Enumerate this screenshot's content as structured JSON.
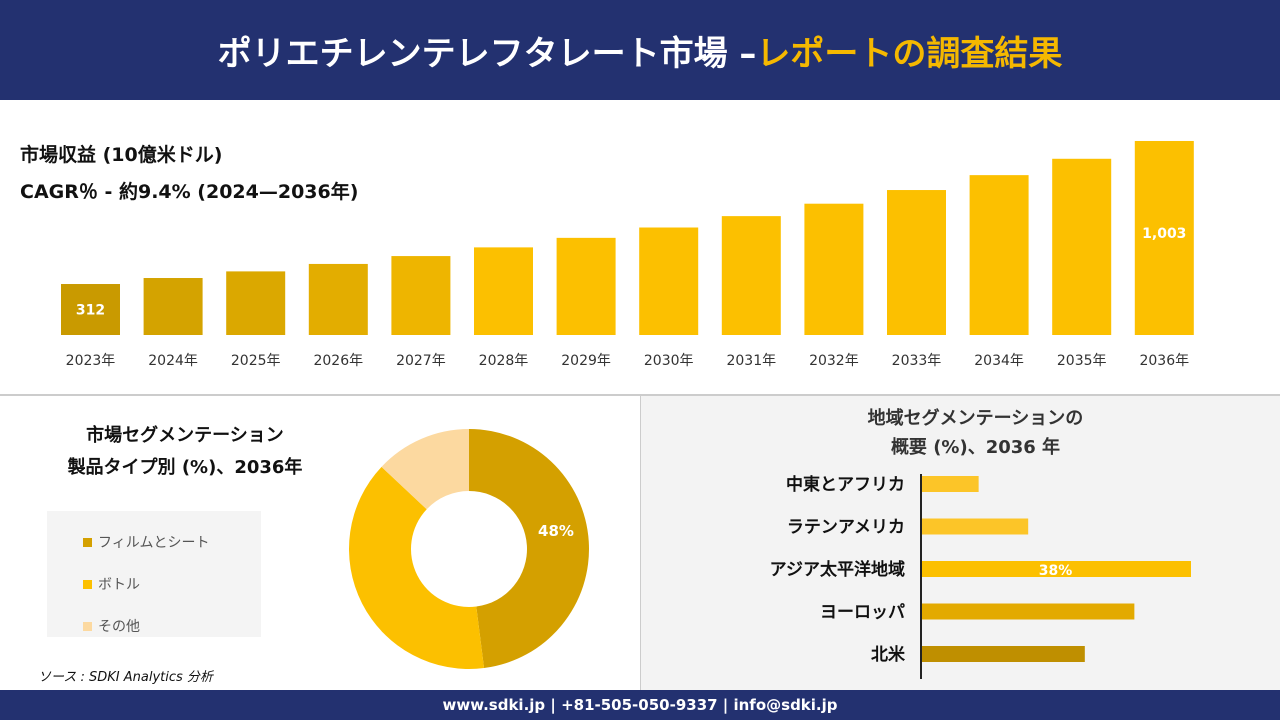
{
  "header": {
    "title_main": "ポリエチレンテレフタレート市場 –",
    "title_accent": "レポートの調査結果"
  },
  "colors": {
    "navy": "#233170",
    "accent": "#f5b800"
  },
  "chart_data": [
    {
      "type": "bar",
      "title": "市場収益 (10億米ドル)",
      "subtitle": "CAGR％ - 約9.4% (2024—2036年)",
      "categories": [
        "2023年",
        "2024年",
        "2025年",
        "2026年",
        "2027年",
        "2028年",
        "2029年",
        "2030年",
        "2031年",
        "2032年",
        "2033年",
        "2034年",
        "2035年",
        "2036年"
      ],
      "values": [
        312,
        341,
        373,
        409,
        447,
        489,
        535,
        585,
        640,
        700,
        766,
        838,
        917,
        1003
      ],
      "data_labels": {
        "0": "312",
        "13": "1,003"
      }
    },
    {
      "type": "pie",
      "title": "市場セグメンテーション",
      "subtitle": "製品タイプ別 (%)、2036年",
      "labels": [
        "フィルムとシート",
        "ボトル",
        "その他"
      ],
      "values": [
        48,
        39,
        13
      ],
      "colors": [
        "#d4a000",
        "#fcc000",
        "#fcd9a0"
      ],
      "data_label": "48%"
    },
    {
      "type": "bar",
      "orientation": "horizontal",
      "title": "地域セグメンテーションの",
      "title2": "概要 (%)、2036 年",
      "categories": [
        "中東とアフリカ",
        "ラテンアメリカ",
        "アジア太平洋地域",
        "ヨーロッパ",
        "北米"
      ],
      "values": [
        8,
        15,
        38,
        30,
        23
      ],
      "data_label": "38%",
      "colors": [
        "#fcc528",
        "#fcc528",
        "#fcc000",
        "#e3aa00",
        "#bf8f00"
      ]
    }
  ],
  "source": "ソース : SDKI Analytics 分析",
  "footer": "www.sdki.jp | +81-505-050-9337 | info@sdki.jp"
}
